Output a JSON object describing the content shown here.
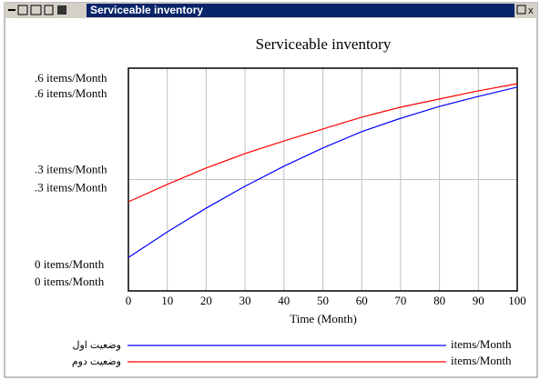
{
  "window_title": "Serviceable inventory",
  "chart_data": {
    "type": "line",
    "title": "Serviceable inventory",
    "x": [
      0,
      10,
      20,
      30,
      40,
      50,
      60,
      70,
      80,
      90,
      100
    ],
    "xlim": [
      0,
      100
    ],
    "xticks": [
      0,
      10,
      20,
      30,
      40,
      50,
      60,
      70,
      80,
      90,
      100
    ],
    "xlabel": "Time (Month)",
    "ylim": [
      0,
      0.6
    ],
    "yticks": [
      {
        "value": 0.6,
        "label": ".6 items/Month"
      },
      {
        "value": 0.3,
        "label": ".3 items/Month"
      },
      {
        "value": 0,
        "label": "0 items/Month"
      }
    ],
    "y2lim": [
      0,
      0.6
    ],
    "y2ticks": [
      {
        "value": 0.6,
        "label": ".6 items/Month"
      },
      {
        "value": 0.3,
        "label": ".3 items/Month"
      },
      {
        "value": 0,
        "label": "0 items/Month"
      }
    ],
    "grid": true,
    "series": [
      {
        "name": "وضعيت اول",
        "units": "items/Month",
        "color": "#0000ff",
        "values": [
          0.09,
          0.159,
          0.223,
          0.282,
          0.336,
          0.385,
          0.429,
          0.465,
          0.497,
          0.524,
          0.549
        ]
      },
      {
        "name": "وضعيت دوم",
        "units": "items/Month",
        "color": "#ff0000",
        "axis": "y2",
        "values": [
          0.24,
          0.287,
          0.331,
          0.37,
          0.404,
          0.436,
          0.468,
          0.495,
          0.517,
          0.539,
          0.558
        ]
      }
    ]
  }
}
